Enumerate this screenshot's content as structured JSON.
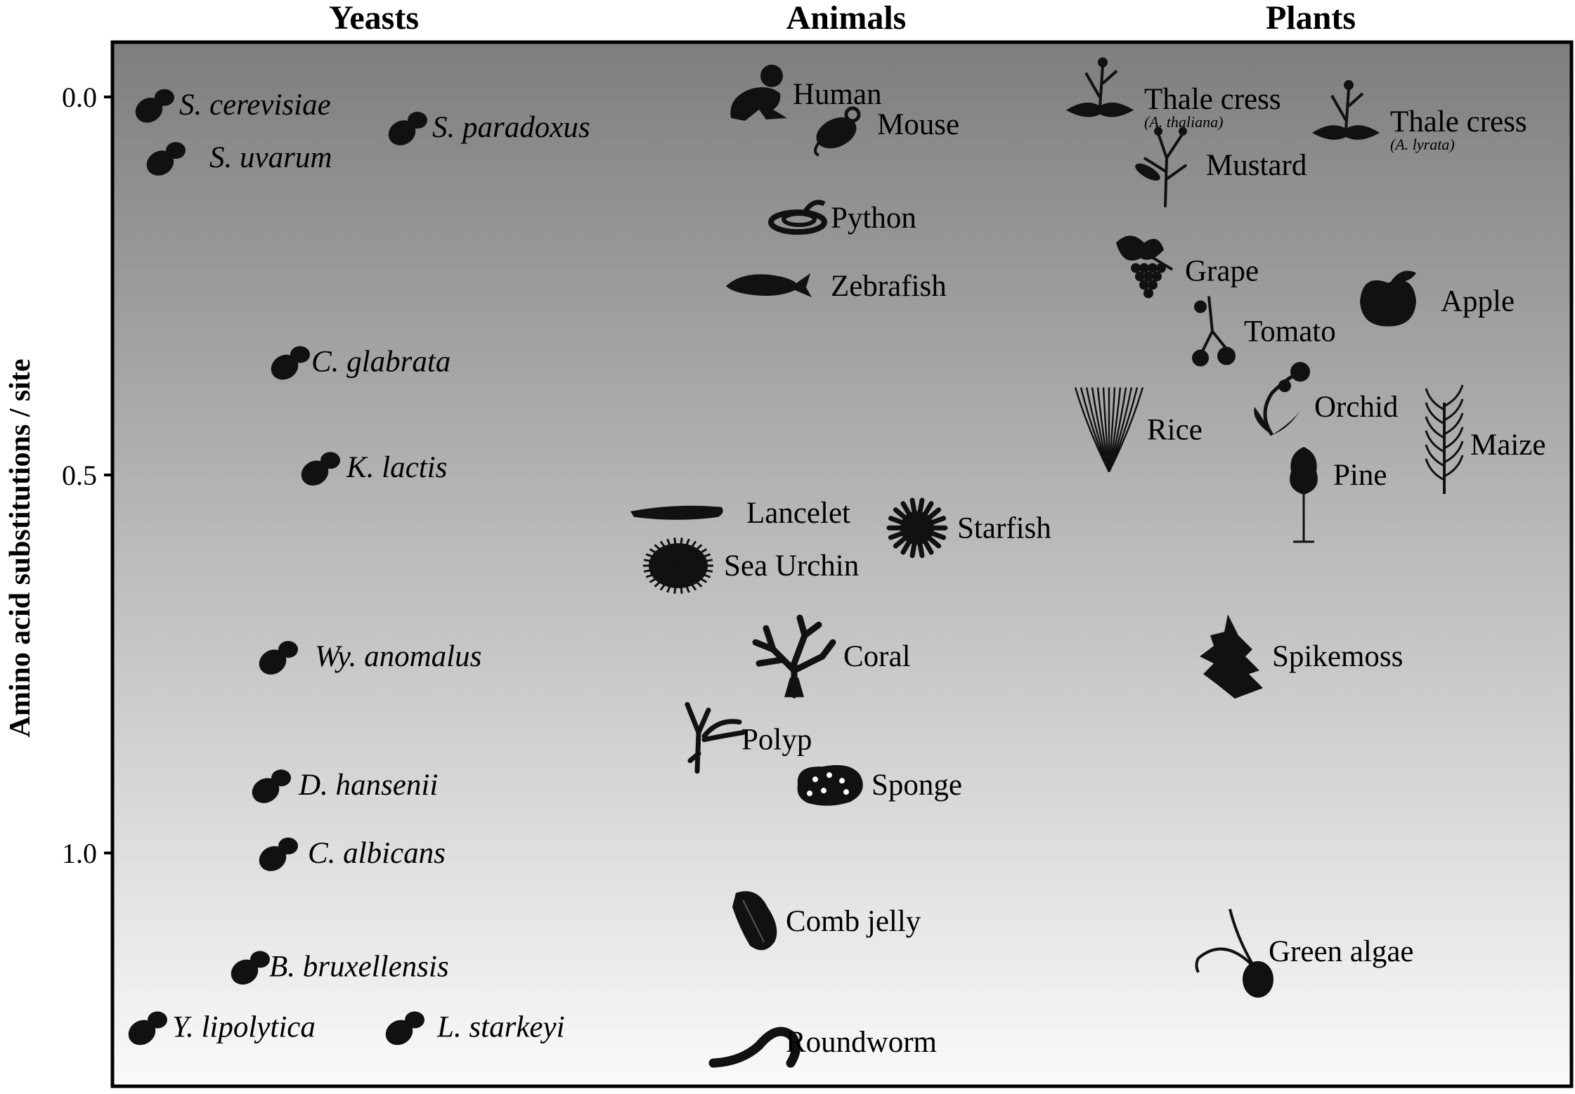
{
  "chart_data": {
    "type": "scatter",
    "ylabel": "Amino acid substitutions / site",
    "ylim": [
      -0.07,
      1.32
    ],
    "y_inverted": true,
    "yticks": [
      "0.0",
      "0.5",
      "1.0"
    ],
    "grid": false,
    "background": {
      "top": "#7e7e7e",
      "bottom": "#fafafa"
    },
    "marker_color": "#111111",
    "columns": [
      "Yeasts",
      "Animals",
      "Plants"
    ],
    "points": [
      {
        "label": "S. cerevisiae",
        "group": "Yeasts",
        "y": 0.01,
        "italic": true,
        "icon": "yeast-cell-icon"
      },
      {
        "label": "S. paradoxus",
        "group": "Yeasts",
        "y": 0.04,
        "italic": true,
        "icon": "yeast-cell-icon"
      },
      {
        "label": "S. uvarum",
        "group": "Yeasts",
        "y": 0.08,
        "italic": true,
        "icon": "yeast-cell-icon"
      },
      {
        "label": "C. glabrata",
        "group": "Yeasts",
        "y": 0.35,
        "italic": true,
        "icon": "yeast-cell-icon"
      },
      {
        "label": "K. lactis",
        "group": "Yeasts",
        "y": 0.49,
        "italic": true,
        "icon": "yeast-cell-icon"
      },
      {
        "label": "Wy. anomalus",
        "group": "Yeasts",
        "y": 0.74,
        "italic": true,
        "icon": "yeast-cell-icon"
      },
      {
        "label": "D. hansenii",
        "group": "Yeasts",
        "y": 0.91,
        "italic": true,
        "icon": "yeast-cell-icon"
      },
      {
        "label": "C. albicans",
        "group": "Yeasts",
        "y": 1.0,
        "italic": true,
        "icon": "yeast-cell-icon"
      },
      {
        "label": "B. bruxellensis",
        "group": "Yeasts",
        "y": 1.15,
        "italic": true,
        "icon": "yeast-cell-icon"
      },
      {
        "label": "Y. lipolytica",
        "group": "Yeasts",
        "y": 1.23,
        "italic": true,
        "icon": "yeast-cell-icon"
      },
      {
        "label": "L. starkeyi",
        "group": "Yeasts",
        "y": 1.23,
        "italic": true,
        "icon": "yeast-cell-icon"
      },
      {
        "label": "Human",
        "group": "Animals",
        "y": 0.0,
        "italic": false,
        "icon": "human-icon"
      },
      {
        "label": "Mouse",
        "group": "Animals",
        "y": 0.04,
        "italic": false,
        "icon": "mouse-icon"
      },
      {
        "label": "Python",
        "group": "Animals",
        "y": 0.16,
        "italic": false,
        "icon": "snake-icon"
      },
      {
        "label": "Zebrafish",
        "group": "Animals",
        "y": 0.25,
        "italic": false,
        "icon": "fish-icon"
      },
      {
        "label": "Lancelet",
        "group": "Animals",
        "y": 0.55,
        "italic": false,
        "icon": "lancelet-icon"
      },
      {
        "label": "Starfish",
        "group": "Animals",
        "y": 0.57,
        "italic": false,
        "icon": "starfish-icon"
      },
      {
        "label": "Sea Urchin",
        "group": "Animals",
        "y": 0.62,
        "italic": false,
        "icon": "urchin-icon"
      },
      {
        "label": "Coral",
        "group": "Animals",
        "y": 0.74,
        "italic": false,
        "icon": "coral-icon"
      },
      {
        "label": "Polyp",
        "group": "Animals",
        "y": 0.85,
        "italic": false,
        "icon": "polyp-icon"
      },
      {
        "label": "Sponge",
        "group": "Animals",
        "y": 0.91,
        "italic": false,
        "icon": "sponge-icon"
      },
      {
        "label": "Comb jelly",
        "group": "Animals",
        "y": 1.09,
        "italic": false,
        "icon": "comb-jelly-icon"
      },
      {
        "label": "Roundworm",
        "group": "Animals",
        "y": 1.25,
        "italic": false,
        "icon": "worm-icon"
      },
      {
        "label": "Thale cress",
        "group": "Plants",
        "y": 0.01,
        "italic": false,
        "icon": "cress-icon",
        "sublabel": "(A. thaliana)"
      },
      {
        "label": "Thale cress",
        "group": "Plants",
        "y": 0.04,
        "italic": false,
        "icon": "cress-icon",
        "sublabel": "(A. lyrata)"
      },
      {
        "label": "Mustard",
        "group": "Plants",
        "y": 0.09,
        "italic": false,
        "icon": "mustard-icon"
      },
      {
        "label": "Grape",
        "group": "Plants",
        "y": 0.23,
        "italic": false,
        "icon": "grape-icon"
      },
      {
        "label": "Apple",
        "group": "Plants",
        "y": 0.27,
        "italic": false,
        "icon": "apple-icon"
      },
      {
        "label": "Tomato",
        "group": "Plants",
        "y": 0.31,
        "italic": false,
        "icon": "tomato-icon"
      },
      {
        "label": "Orchid",
        "group": "Plants",
        "y": 0.41,
        "italic": false,
        "icon": "orchid-icon"
      },
      {
        "label": "Rice",
        "group": "Plants",
        "y": 0.44,
        "italic": false,
        "icon": "rice-icon"
      },
      {
        "label": "Maize",
        "group": "Plants",
        "y": 0.46,
        "italic": false,
        "icon": "maize-icon"
      },
      {
        "label": "Pine",
        "group": "Plants",
        "y": 0.5,
        "italic": false,
        "icon": "pine-icon"
      },
      {
        "label": "Spikemoss",
        "group": "Plants",
        "y": 0.74,
        "italic": false,
        "icon": "spikemoss-icon"
      },
      {
        "label": "Green algae",
        "group": "Plants",
        "y": 1.13,
        "italic": false,
        "icon": "algae-icon"
      }
    ]
  }
}
